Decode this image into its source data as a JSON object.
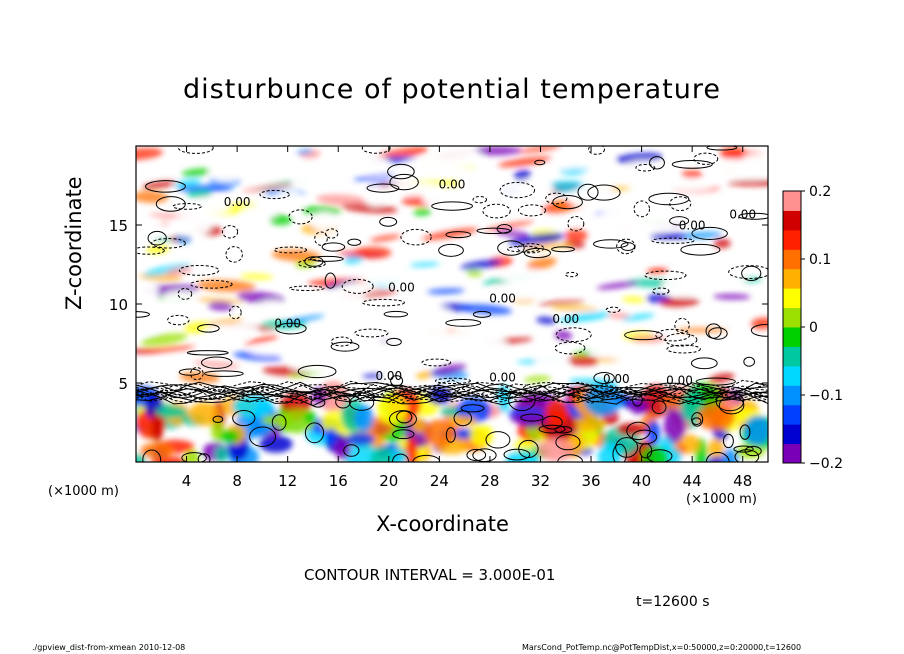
{
  "chart_data": {
    "type": "heatmap",
    "title": "disturbunce of potential temperature",
    "xlabel": "X-coordinate",
    "ylabel": "Z-coordinate",
    "x_unit": "(×1000 m)",
    "xlim": [
      0,
      50
    ],
    "ylim": [
      0,
      20
    ],
    "x_ticks": [
      4,
      8,
      12,
      16,
      20,
      24,
      28,
      32,
      36,
      40,
      44,
      48
    ],
    "y_ticks": [
      5,
      10,
      15
    ],
    "colorbar": {
      "min": -0.2,
      "max": 0.2,
      "ticks": [
        -0.2,
        -0.1,
        0,
        0.1,
        0.2
      ],
      "tick_labels": [
        "−0.2",
        "−0.1",
        "0",
        "0.1",
        "0.2"
      ],
      "colors": [
        "#7a00b8",
        "#0000d0",
        "#0040ff",
        "#0090ff",
        "#00d8ff",
        "#00c8a0",
        "#00d000",
        "#9be000",
        "#ffff00",
        "#ffb000",
        "#ff7000",
        "#ff2000",
        "#d00000",
        "#ff9090"
      ]
    },
    "contour_interval": 0.3,
    "contour_labels": [
      "0.00"
    ],
    "panels": [
      {
        "z_range": [
          5,
          20
        ],
        "description": "upper layer: white regions with solid and dashed contours, colored streaks"
      },
      {
        "z_range": [
          4,
          5.5
        ],
        "description": "dense contour band"
      },
      {
        "z_range": [
          0,
          4
        ],
        "description": "lower layer: mixed colored cells"
      }
    ]
  },
  "notes": {
    "contour_interval": "CONTOUR INTERVAL = 3.000E-01",
    "time": "t=12600 s"
  },
  "footer": {
    "left": "./gpview_dist-from-xmean   2010-12-08",
    "right": "MarsCond_PotTemp.nc@PotTempDist,x=0:50000,z=0:20000,t=12600"
  }
}
